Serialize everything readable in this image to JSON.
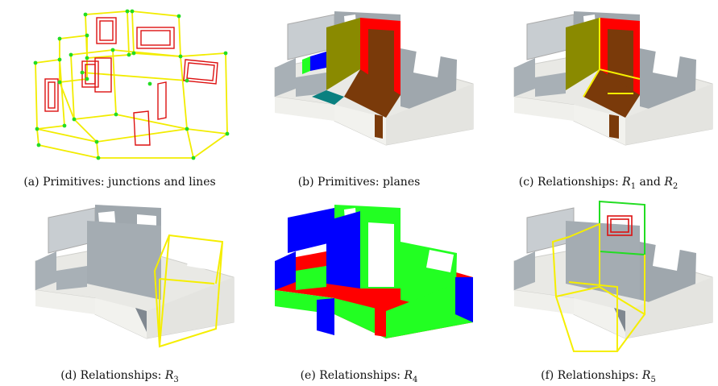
{
  "figure": {
    "panels": [
      {
        "id": "a",
        "letter": "(a)",
        "text": "Primitives: junctions and lines",
        "math": "",
        "sub": "",
        "math2": "",
        "sub2": "",
        "joiner": ""
      },
      {
        "id": "b",
        "letter": "(b)",
        "text": "Primitives: planes",
        "math": "",
        "sub": "",
        "math2": "",
        "sub2": "",
        "joiner": ""
      },
      {
        "id": "c",
        "letter": "(c)",
        "text": "Relationships: ",
        "math": "R",
        "sub": "1",
        "joiner": " and ",
        "math2": "R",
        "sub2": "2"
      },
      {
        "id": "d",
        "letter": "(d)",
        "text": "Relationships: ",
        "math": "R",
        "sub": "3",
        "joiner": "",
        "math2": "",
        "sub2": ""
      },
      {
        "id": "e",
        "letter": "(e)",
        "text": "Relationships: ",
        "math": "R",
        "sub": "4",
        "joiner": "",
        "math2": "",
        "sub2": ""
      },
      {
        "id": "f",
        "letter": "(f)",
        "text": "Relationships: ",
        "math": "R",
        "sub": "5",
        "joiner": "",
        "math2": "",
        "sub2": ""
      }
    ],
    "colors": {
      "line": "#f5ee00",
      "junction": "#22dd22",
      "frame": "#dd1111",
      "wall": "#eeeeea",
      "floor": "#9fa7ad",
      "red": "#ff0000",
      "green": "#22ff22",
      "blue": "#0000ff",
      "olive": "#8a8a00",
      "brown": "#7a3a0a",
      "teal": "#0a8080"
    }
  }
}
